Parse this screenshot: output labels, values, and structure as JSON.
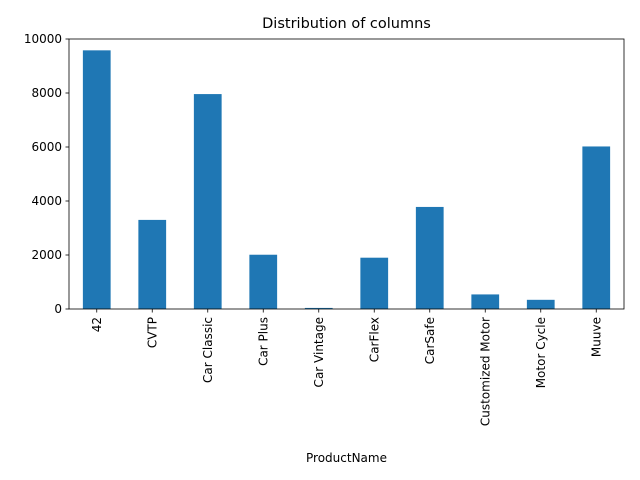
{
  "chart_data": {
    "type": "bar",
    "title": "Distribution of columns",
    "xlabel": "ProductName",
    "ylabel": "",
    "categories": [
      "42",
      "CVTP",
      "Car Classic",
      "Car Plus",
      "Car Vintage",
      "CarFlex",
      "CarSafe",
      "Customized Motor",
      "Motor Cycle",
      "Muuve"
    ],
    "values": [
      9580,
      3300,
      7960,
      2010,
      40,
      1900,
      3780,
      540,
      340,
      6020
    ],
    "ylim": [
      0,
      10000
    ],
    "yticks": [
      0,
      2000,
      4000,
      6000,
      8000,
      10000
    ],
    "grid": false,
    "legend": "none",
    "bar_color": "#1f77b4"
  }
}
